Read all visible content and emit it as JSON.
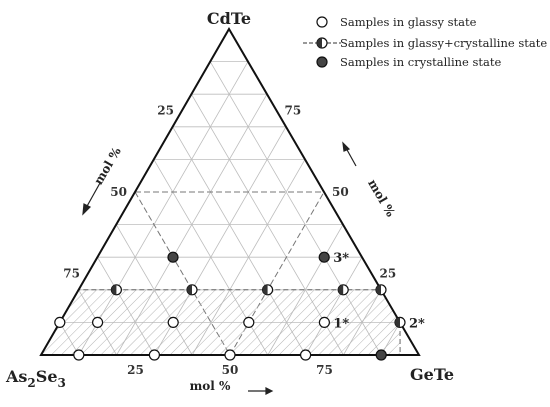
{
  "chart_data": {
    "type": "ternary scatter",
    "vertices": {
      "top": "CdTe",
      "left_main": "As",
      "left_sub1": "2",
      "left_mid": "Se",
      "left_sub2": "3",
      "right": "GeTe"
    },
    "axis_label": "mol %",
    "ticks": {
      "left_edge": [
        "25",
        "50",
        "75"
      ],
      "right_edge": [
        "75",
        "50",
        "25"
      ],
      "bottom_edge": [
        "25",
        "50",
        "75"
      ]
    },
    "legend": {
      "glassy": "Samples in glassy state",
      "mixed": "Samples in glassy+crystalline state",
      "crystalline": "Samples in crystalline state"
    },
    "samples": [
      {
        "CdTe": 0,
        "GeTe": 10,
        "state": "glassy"
      },
      {
        "CdTe": 0,
        "GeTe": 30,
        "state": "glassy"
      },
      {
        "CdTe": 0,
        "GeTe": 50,
        "state": "glassy"
      },
      {
        "CdTe": 0,
        "GeTe": 70,
        "state": "glassy"
      },
      {
        "CdTe": 0,
        "GeTe": 90,
        "state": "crystalline"
      },
      {
        "CdTe": 10,
        "GeTe": 0,
        "state": "glassy"
      },
      {
        "CdTe": 10,
        "GeTe": 10,
        "state": "glassy"
      },
      {
        "CdTe": 10,
        "GeTe": 30,
        "state": "glassy"
      },
      {
        "CdTe": 10,
        "GeTe": 50,
        "state": "glassy"
      },
      {
        "CdTe": 10,
        "GeTe": 70,
        "state": "glassy",
        "label": "1*"
      },
      {
        "CdTe": 10,
        "GeTe": 90,
        "state": "mixed",
        "label": "2*"
      },
      {
        "CdTe": 20,
        "GeTe": 10,
        "state": "mixed"
      },
      {
        "CdTe": 20,
        "GeTe": 30,
        "state": "mixed"
      },
      {
        "CdTe": 20,
        "GeTe": 50,
        "state": "mixed"
      },
      {
        "CdTe": 20,
        "GeTe": 70,
        "state": "mixed"
      },
      {
        "CdTe": 20,
        "GeTe": 80,
        "state": "mixed"
      },
      {
        "CdTe": 30,
        "GeTe": 20,
        "state": "crystalline"
      },
      {
        "CdTe": 30,
        "GeTe": 60,
        "state": "crystalline",
        "label": "3*"
      }
    ]
  }
}
